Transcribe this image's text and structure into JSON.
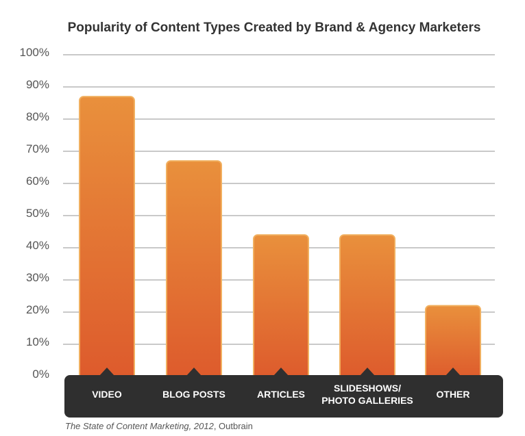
{
  "chart_data": {
    "type": "bar",
    "title": "Popularity of Content Types Created by Brand & Agency Marketers",
    "categories": [
      "VIDEO",
      "BLOG POSTS",
      "ARTICLES",
      "SLIDESHOWS/ PHOTO GALLERIES",
      "OTHER"
    ],
    "category_lines": [
      [
        "VIDEO"
      ],
      [
        "BLOG POSTS"
      ],
      [
        "ARTICLES"
      ],
      [
        "SLIDESHOWS/",
        "PHOTO GALLERIES"
      ],
      [
        "OTHER"
      ]
    ],
    "values": [
      87,
      67,
      44,
      44,
      22
    ],
    "ylim": [
      0,
      100
    ],
    "yticks": [
      "0%",
      "10%",
      "20%",
      "30%",
      "40%",
      "50%",
      "60%",
      "70%",
      "80%",
      "90%",
      "100%"
    ],
    "xlabel": "",
    "ylabel": "",
    "grid": true,
    "bar_color_top": "#e9903c",
    "bar_color_bottom": "#dd5a2c",
    "bar_border": "#f1b060",
    "axis_band_color": "#2f2f2f"
  },
  "source": {
    "italic_text": "The State of Content Marketing, 2012",
    "rest_text": ", Outbrain"
  }
}
